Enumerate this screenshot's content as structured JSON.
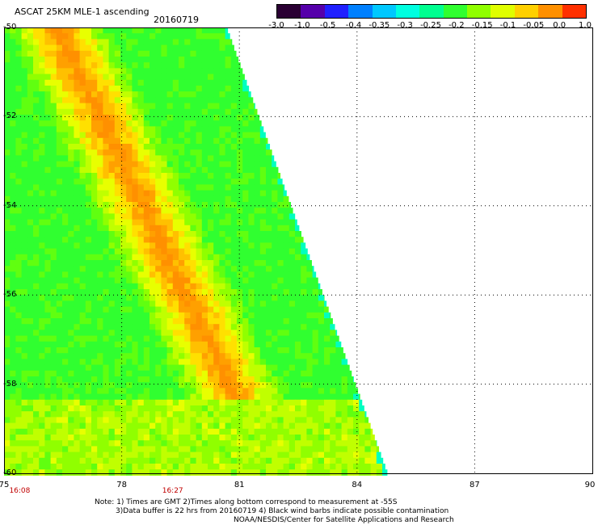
{
  "title": "ASCAT 25KM MLE-1 ascending",
  "date": "20160719",
  "colorbar": {
    "labels": [
      "-3.0",
      "-1.0",
      "-0.5",
      "-0.4",
      "-0.35",
      "-0.3",
      "-0.25",
      "-0.2",
      "-0.15",
      "-0.1",
      "-0.05",
      "0.0",
      "1.0"
    ],
    "colors": [
      "#2a0033",
      "#5500aa",
      "#2020ff",
      "#0080ff",
      "#00c8ff",
      "#00ffe0",
      "#00ff90",
      "#30ff30",
      "#90ff00",
      "#e0ff00",
      "#ffd000",
      "#ff9000",
      "#ff3000"
    ]
  },
  "map": {
    "lat_labels": [
      "-50",
      "-52",
      "-54",
      "-56",
      "-58",
      "-60"
    ],
    "lon_labels": [
      "75",
      "78",
      "81",
      "84",
      "87",
      "90"
    ],
    "time_labels": [
      "16:08",
      "16:27"
    ]
  },
  "notes": {
    "line1": "Note: 1) Times are GMT 2)Times along bottom correspond to measurement at -55S",
    "line2": "3)Data buffer is 22 hrs from 20160719 4) Black wind barbs indicate possible contamination",
    "line3": "NOAA/NESDIS/Center for Satellite Applications and Research"
  }
}
